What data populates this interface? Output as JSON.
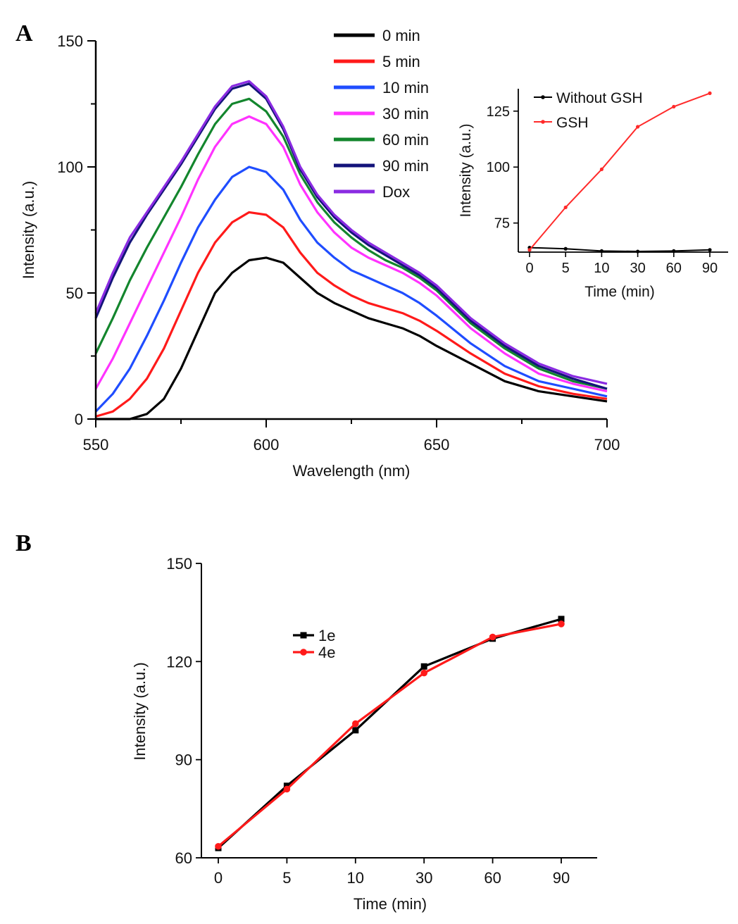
{
  "panels": {
    "a_letter": "A",
    "b_letter": "B"
  },
  "colors": {
    "0 min": "#000000",
    "5 min": "#ff1a1a",
    "10 min": "#1f4dff",
    "30 min": "#ff33ff",
    "60 min": "#13862d",
    "90 min": "#14147a",
    "Dox": "#8a2be2",
    "Without GSH": "#000000",
    "GSH": "#ff2a2a",
    "1e": "#000000",
    "4e": "#ff1a1a"
  },
  "chart_data": [
    {
      "type": "line",
      "panel": "A",
      "title": "",
      "xlabel": "Wavelength (nm)",
      "ylabel": "Intensity (a.u.)",
      "xlim": [
        550,
        700
      ],
      "ylim": [
        0,
        150
      ],
      "xticks": [
        "550",
        "600",
        "650",
        "700"
      ],
      "yticks": [
        "0",
        "50",
        "100",
        "150"
      ],
      "legend_position": "top-center",
      "series": [
        {
          "name": "0 min",
          "x": [
            550,
            555,
            560,
            565,
            570,
            575,
            580,
            585,
            590,
            595,
            600,
            605,
            610,
            615,
            620,
            625,
            630,
            635,
            640,
            645,
            650,
            660,
            670,
            680,
            690,
            700
          ],
          "y": [
            0,
            0,
            0,
            2,
            8,
            20,
            35,
            50,
            58,
            63,
            64,
            62,
            56,
            50,
            46,
            43,
            40,
            38,
            36,
            33,
            29,
            22,
            15,
            11,
            9,
            7
          ]
        },
        {
          "name": "5 min",
          "x": [
            550,
            555,
            560,
            565,
            570,
            575,
            580,
            585,
            590,
            595,
            600,
            605,
            610,
            615,
            620,
            625,
            630,
            635,
            640,
            645,
            650,
            660,
            670,
            680,
            690,
            700
          ],
          "y": [
            1,
            3,
            8,
            16,
            28,
            43,
            58,
            70,
            78,
            82,
            81,
            76,
            66,
            58,
            53,
            49,
            46,
            44,
            42,
            39,
            35,
            26,
            18,
            13,
            10,
            8
          ]
        },
        {
          "name": "10 min",
          "x": [
            550,
            555,
            560,
            565,
            570,
            575,
            580,
            585,
            590,
            595,
            600,
            605,
            610,
            615,
            620,
            625,
            630,
            635,
            640,
            645,
            650,
            660,
            670,
            680,
            690,
            700
          ],
          "y": [
            3,
            10,
            20,
            33,
            47,
            62,
            76,
            87,
            96,
            100,
            98,
            91,
            79,
            70,
            64,
            59,
            56,
            53,
            50,
            46,
            41,
            30,
            21,
            15,
            12,
            9
          ]
        },
        {
          "name": "30 min",
          "x": [
            550,
            555,
            560,
            565,
            570,
            575,
            580,
            585,
            590,
            595,
            600,
            605,
            610,
            615,
            620,
            625,
            630,
            635,
            640,
            645,
            650,
            660,
            670,
            680,
            690,
            700
          ],
          "y": [
            12,
            24,
            38,
            52,
            66,
            80,
            95,
            108,
            117,
            120,
            117,
            108,
            93,
            82,
            74,
            68,
            64,
            61,
            58,
            54,
            49,
            36,
            26,
            18,
            14,
            11
          ]
        },
        {
          "name": "60 min",
          "x": [
            550,
            555,
            560,
            565,
            570,
            575,
            580,
            585,
            590,
            595,
            600,
            605,
            610,
            615,
            620,
            625,
            630,
            635,
            640,
            645,
            650,
            660,
            670,
            680,
            690,
            700
          ],
          "y": [
            26,
            40,
            55,
            68,
            80,
            92,
            105,
            117,
            125,
            127,
            122,
            112,
            97,
            86,
            78,
            72,
            67,
            63,
            60,
            56,
            51,
            38,
            28,
            20,
            15,
            12
          ]
        },
        {
          "name": "90 min",
          "x": [
            550,
            555,
            560,
            565,
            570,
            575,
            580,
            585,
            590,
            595,
            600,
            605,
            610,
            615,
            620,
            625,
            630,
            635,
            640,
            645,
            650,
            660,
            670,
            680,
            690,
            700
          ],
          "y": [
            40,
            56,
            70,
            81,
            91,
            101,
            112,
            123,
            131,
            133,
            127,
            115,
            99,
            88,
            80,
            74,
            69,
            65,
            61,
            57,
            52,
            39,
            29,
            21,
            16,
            12
          ]
        },
        {
          "name": "Dox",
          "x": [
            550,
            555,
            560,
            565,
            570,
            575,
            580,
            585,
            590,
            595,
            600,
            605,
            610,
            615,
            620,
            625,
            630,
            635,
            640,
            645,
            650,
            660,
            670,
            680,
            690,
            700
          ],
          "y": [
            42,
            58,
            72,
            82,
            92,
            102,
            113,
            124,
            132,
            134,
            128,
            116,
            100,
            89,
            81,
            75,
            70,
            66,
            62,
            58,
            53,
            40,
            30,
            22,
            17,
            14
          ]
        }
      ]
    },
    {
      "type": "line",
      "panel": "A-inset",
      "title": "",
      "xlabel": "Time (min)",
      "ylabel": "Intensity (a.u.)",
      "categories": [
        "0",
        "5",
        "10",
        "30",
        "60",
        "90"
      ],
      "ylim": [
        62,
        135
      ],
      "yticks": [
        "75",
        "100",
        "125"
      ],
      "legend_position": "top-left",
      "series": [
        {
          "name": "Without GSH",
          "values": [
            64,
            63.5,
            62.5,
            62.3,
            62.5,
            63
          ]
        },
        {
          "name": "GSH",
          "values": [
            63,
            82,
            99,
            118,
            127,
            133
          ]
        }
      ]
    },
    {
      "type": "line",
      "panel": "B",
      "title": "",
      "xlabel": "Time (min)",
      "ylabel": "Intensity (a.u.)",
      "categories": [
        "0",
        "5",
        "10",
        "30",
        "60",
        "90"
      ],
      "ylim": [
        60,
        150
      ],
      "yticks": [
        "60",
        "90",
        "120",
        "150"
      ],
      "legend_position": "center-left",
      "series": [
        {
          "name": "1e",
          "values": [
            63,
            82,
            99,
            118.5,
            127,
            133
          ]
        },
        {
          "name": "4e",
          "values": [
            63.5,
            81,
            101,
            116.5,
            127.5,
            131.5
          ]
        }
      ]
    }
  ]
}
